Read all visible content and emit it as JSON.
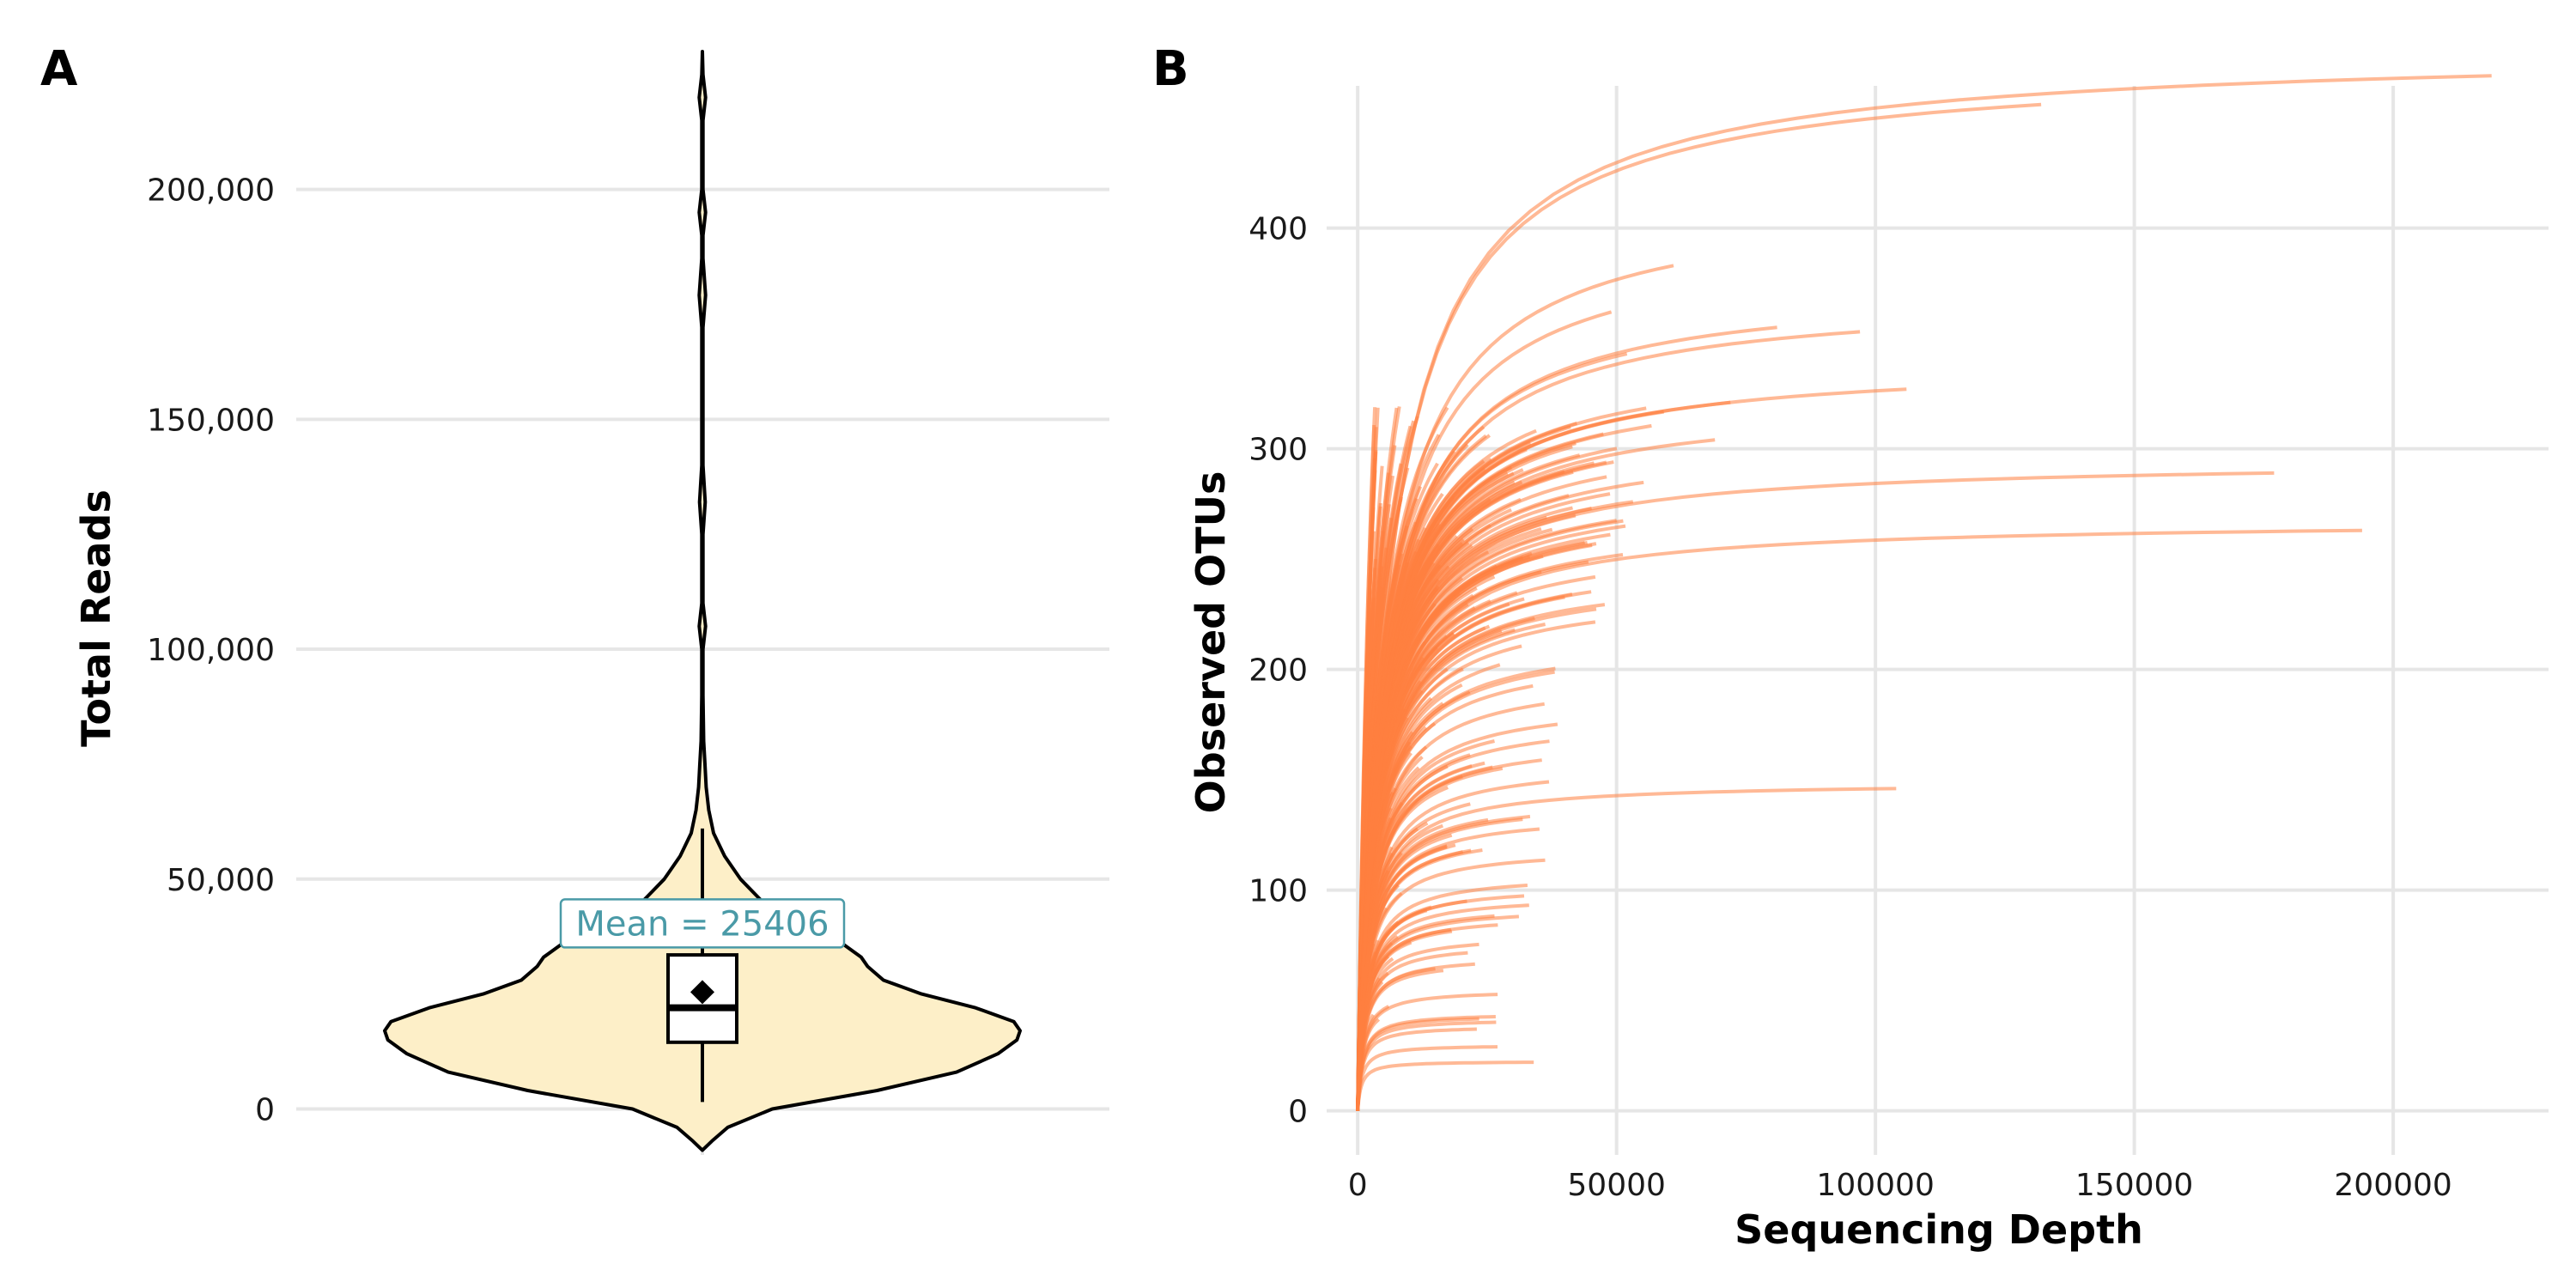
{
  "chart_data": [
    {
      "panel": "A",
      "type": "violin",
      "xlabel": "",
      "ylabel": "Total Reads",
      "ylim": [
        -10000,
        230000
      ],
      "yticks": [
        0,
        50000,
        100000,
        150000,
        200000
      ],
      "ytick_labels": [
        "0",
        "50,000",
        "100,000",
        "150,000",
        "200,000"
      ],
      "grid": true,
      "violin_color": "#fdefc8",
      "violin_max_half_width": 370,
      "density_profile": [
        [
          -9000,
          0.0
        ],
        [
          -7000,
          0.03
        ],
        [
          -4000,
          0.08
        ],
        [
          0,
          0.22
        ],
        [
          4000,
          0.55
        ],
        [
          8000,
          0.8
        ],
        [
          12000,
          0.93
        ],
        [
          15000,
          0.99
        ],
        [
          17000,
          1.0
        ],
        [
          19000,
          0.98
        ],
        [
          22000,
          0.86
        ],
        [
          25000,
          0.69
        ],
        [
          28000,
          0.57
        ],
        [
          31000,
          0.52
        ],
        [
          33000,
          0.5
        ],
        [
          36000,
          0.44
        ],
        [
          40000,
          0.3
        ],
        [
          45000,
          0.19
        ],
        [
          50000,
          0.12
        ],
        [
          55000,
          0.07
        ],
        [
          60000,
          0.035
        ],
        [
          65000,
          0.02
        ],
        [
          70000,
          0.012
        ],
        [
          75000,
          0.008
        ],
        [
          80000,
          0.004
        ],
        [
          85000,
          0.003
        ],
        [
          90000,
          0.002
        ],
        [
          100000,
          0.002
        ],
        [
          105000,
          0.01
        ],
        [
          110000,
          0.002
        ],
        [
          125000,
          0.002
        ],
        [
          132000,
          0.009
        ],
        [
          140000,
          0.002
        ],
        [
          170000,
          0.002
        ],
        [
          177000,
          0.01
        ],
        [
          185000,
          0.002
        ],
        [
          190000,
          0.002
        ],
        [
          195000,
          0.01
        ],
        [
          200000,
          0.002
        ],
        [
          215000,
          0.002
        ],
        [
          220000,
          0.01
        ],
        [
          225000,
          0.002
        ],
        [
          230000,
          0.0
        ]
      ],
      "box": {
        "q1": 14500,
        "median": 22000,
        "q3": 33500,
        "whisker_low": 1500,
        "whisker_high": 61000
      },
      "mean": 25406,
      "mean_label": "Mean = 25406",
      "mean_label_color": "#4a9aa7"
    },
    {
      "panel": "B",
      "type": "line",
      "title": "",
      "xlabel": "Sequencing Depth",
      "ylabel": "Observed OTUs",
      "xlim": [
        -6000,
        230000
      ],
      "ylim": [
        -20,
        480
      ],
      "xticks": [
        0,
        50000,
        100000,
        150000,
        200000
      ],
      "xtick_labels": [
        "0",
        "50000",
        "100000",
        "150000",
        "200000"
      ],
      "yticks": [
        0,
        100,
        200,
        300,
        400
      ],
      "ytick_labels": [
        "0",
        "100",
        "200",
        "300",
        "400"
      ],
      "grid": true,
      "line_color": "#ff7f3f",
      "line_opacity": 0.55,
      "curves_note_count": 300,
      "highlighted_curves": [
        {
          "max_depth": 219000,
          "asymptote": 469
        },
        {
          "max_depth": 132000,
          "asymptote": 456
        },
        {
          "max_depth": 61000,
          "asymptote": 383
        },
        {
          "max_depth": 49000,
          "asymptote": 362
        },
        {
          "max_depth": 81000,
          "asymptote": 355
        },
        {
          "max_depth": 97000,
          "asymptote": 353
        },
        {
          "max_depth": 52000,
          "asymptote": 343
        },
        {
          "max_depth": 106000,
          "asymptote": 327
        },
        {
          "max_depth": 72000,
          "asymptote": 321
        },
        {
          "max_depth": 69000,
          "asymptote": 304
        },
        {
          "max_depth": 177000,
          "asymptote": 289
        },
        {
          "max_depth": 194000,
          "asymptote": 263
        },
        {
          "max_depth": 104000,
          "asymptote": 146
        },
        {
          "max_depth": 34000,
          "asymptote": 22
        },
        {
          "max_depth": 27000,
          "asymptote": 29
        },
        {
          "max_depth": 23000,
          "asymptote": 37
        }
      ],
      "bulk_depth_range": [
        3000,
        60000
      ],
      "bulk_asymptote_range": [
        40,
        320
      ]
    }
  ]
}
